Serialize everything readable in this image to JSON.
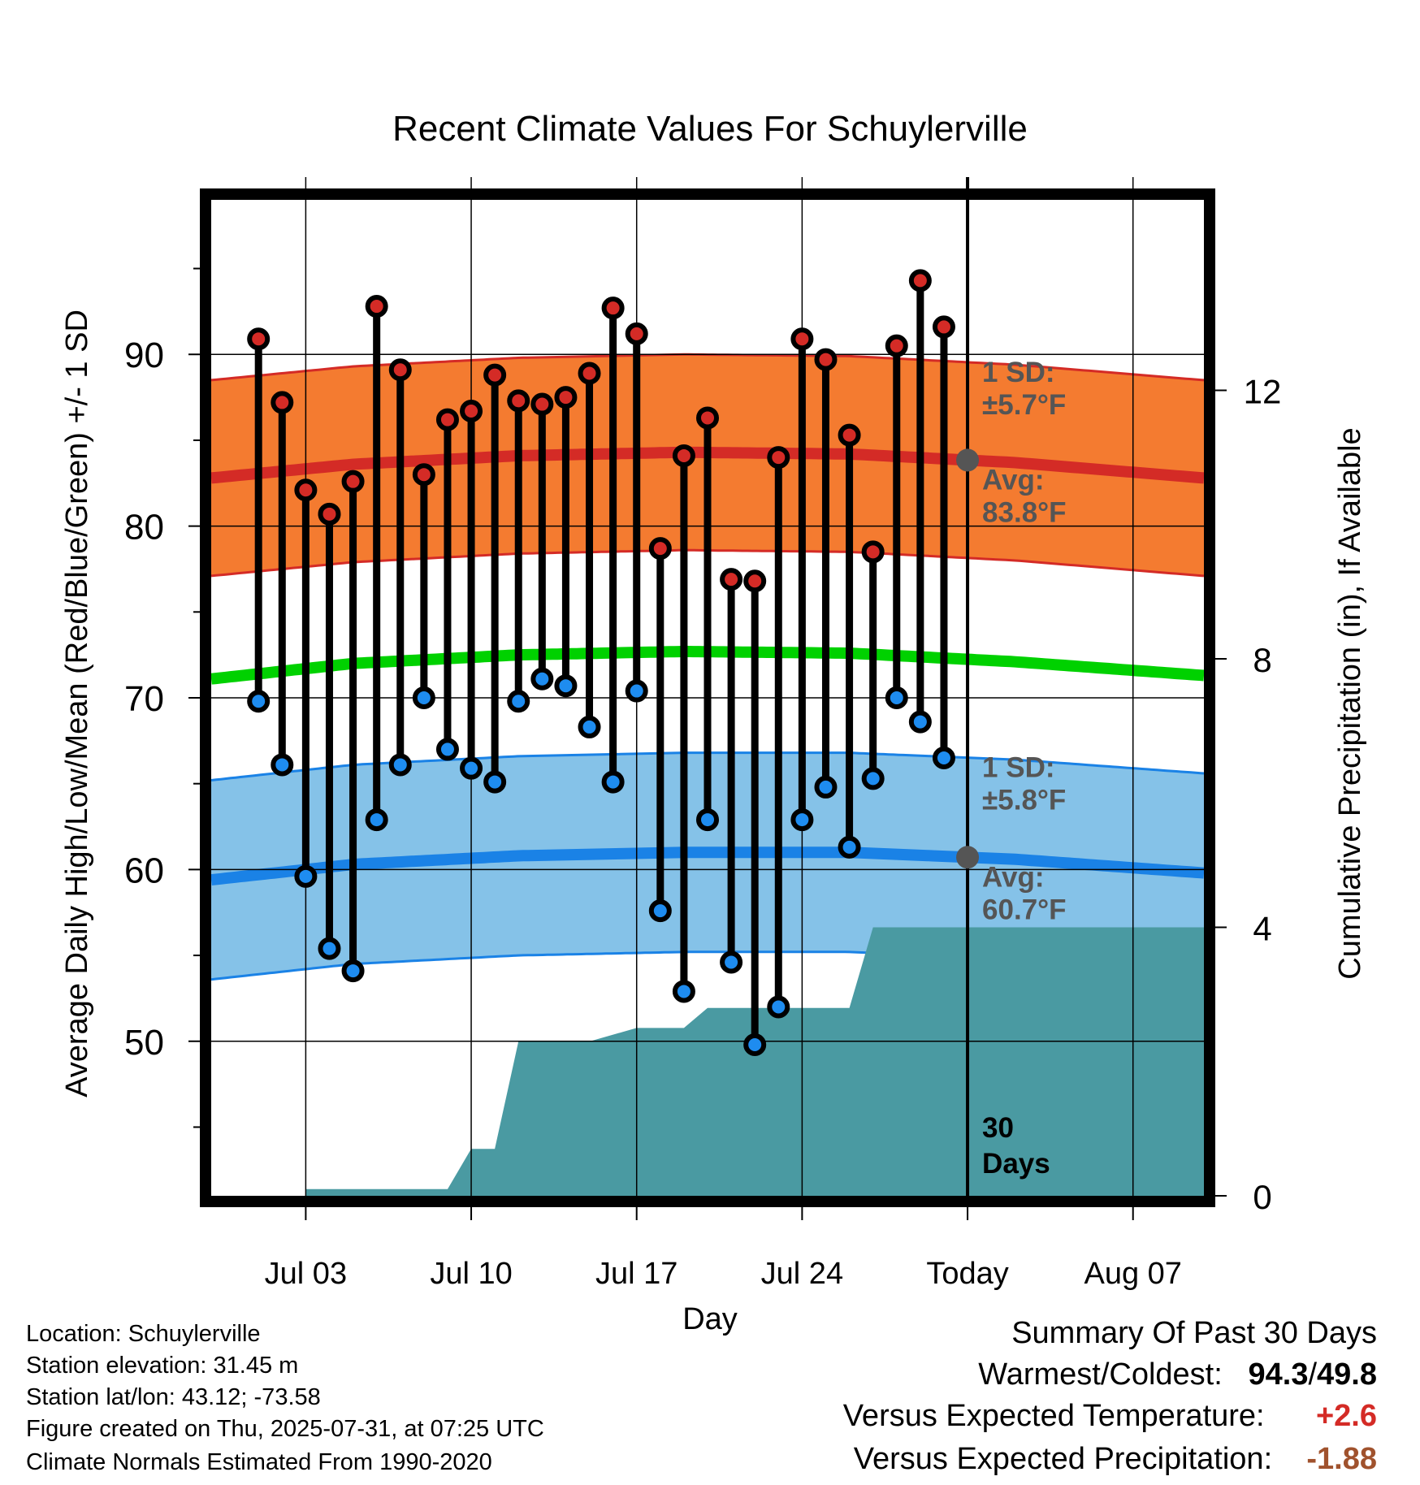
{
  "chart_data": {
    "type": "line",
    "title": "Recent Climate Values For Schuylerville",
    "xlabel": "Day",
    "ylabel": "Average Daily High/Low/Mean (Red/Blue/Green) +/- 1 SD",
    "y2label": "Cumulative Precipitation (in), If Available",
    "ylim": [
      41,
      99
    ],
    "y_ticks": [
      50,
      60,
      70,
      80,
      90
    ],
    "y2lim": [
      0,
      16
    ],
    "y2_ticks": [
      0,
      4,
      8,
      12
    ],
    "x_range": [
      "2025-06-29",
      "2025-08-10"
    ],
    "x_ticks": [
      {
        "date": "2025-07-03",
        "label": "Jul 03"
      },
      {
        "date": "2025-07-10",
        "label": "Jul 10"
      },
      {
        "date": "2025-07-17",
        "label": "Jul 17"
      },
      {
        "date": "2025-07-24",
        "label": "Jul 24"
      },
      {
        "date": "2025-07-31",
        "label": "Today"
      },
      {
        "date": "2025-08-07",
        "label": "Aug 07"
      }
    ],
    "today": "2025-07-31",
    "grid": true,
    "dates": [
      "2025-07-01",
      "2025-07-02",
      "2025-07-03",
      "2025-07-04",
      "2025-07-05",
      "2025-07-06",
      "2025-07-07",
      "2025-07-08",
      "2025-07-09",
      "2025-07-10",
      "2025-07-11",
      "2025-07-12",
      "2025-07-13",
      "2025-07-14",
      "2025-07-15",
      "2025-07-16",
      "2025-07-17",
      "2025-07-18",
      "2025-07-19",
      "2025-07-20",
      "2025-07-21",
      "2025-07-22",
      "2025-07-23",
      "2025-07-24",
      "2025-07-25",
      "2025-07-26",
      "2025-07-27",
      "2025-07-28",
      "2025-07-29",
      "2025-07-30"
    ],
    "daily_high": [
      90.9,
      87.2,
      82.1,
      80.7,
      82.6,
      92.8,
      89.1,
      83.0,
      86.2,
      86.7,
      88.8,
      87.3,
      87.1,
      87.5,
      88.9,
      92.7,
      91.2,
      78.7,
      84.1,
      86.3,
      76.9,
      76.8,
      84.0,
      90.9,
      89.7,
      85.3,
      78.5,
      90.5,
      94.3,
      91.6
    ],
    "daily_low": [
      69.8,
      66.1,
      59.6,
      55.4,
      54.1,
      62.9,
      66.1,
      70.0,
      67.0,
      65.9,
      65.1,
      69.8,
      71.1,
      70.7,
      68.3,
      65.1,
      70.4,
      57.6,
      52.9,
      62.9,
      54.6,
      49.8,
      52.0,
      62.9,
      64.8,
      61.3,
      65.3,
      70.0,
      68.6,
      66.5
    ],
    "normal_dates": [
      "2025-06-29",
      "2025-07-05",
      "2025-07-12",
      "2025-07-19",
      "2025-07-26",
      "2025-08-02",
      "2025-08-10"
    ],
    "normal_high": [
      82.8,
      83.6,
      84.1,
      84.3,
      84.2,
      83.7,
      82.8
    ],
    "normal_high_sd": 5.7,
    "normal_low": [
      59.4,
      60.3,
      60.8,
      61.0,
      61.0,
      60.6,
      59.8
    ],
    "normal_low_sd": 5.8,
    "normal_mean": [
      71.1,
      72.0,
      72.5,
      72.7,
      72.6,
      72.1,
      71.3
    ],
    "precip_dates": [
      "2025-07-03",
      "2025-07-09",
      "2025-07-10",
      "2025-07-11",
      "2025-07-12",
      "2025-07-15",
      "2025-07-17",
      "2025-07-19",
      "2025-07-20",
      "2025-07-26",
      "2025-07-27",
      "2025-08-10"
    ],
    "precip_cum": [
      0.1,
      0.1,
      0.7,
      0.7,
      2.3,
      2.3,
      2.5,
      2.5,
      2.8,
      2.8,
      4.0,
      4.0
    ],
    "annotations": {
      "high_sd_title": "1 SD:",
      "high_sd_value": "±5.7°F",
      "high_avg_title": "Avg:",
      "high_avg_value": "83.8°F",
      "low_sd_title": "1 SD:",
      "low_sd_value": "±5.8°F",
      "low_avg_title": "Avg:",
      "low_avg_value": "60.7°F",
      "precip_label_1": "30",
      "precip_label_2": "Days"
    }
  },
  "colors": {
    "high_band": "#f47b30",
    "high_line": "#d42b26",
    "low_band": "#85c2e8",
    "low_line": "#1a82e6",
    "mean_line": "#00d100",
    "precip_fill": "#4a9aa2",
    "high_dot": "#d42b26",
    "low_dot": "#1e8cf0",
    "annotation": "#555555",
    "warm": "#d42b26",
    "dry": "#a0522d"
  },
  "info": {
    "location": "Location: Schuylerville",
    "elevation": "Station elevation: 31.45 m",
    "latlon": "Station lat/lon: 43.12; -73.58",
    "created": "Figure created on Thu, 2025-07-31, at 07:25 UTC",
    "normals": "Climate Normals Estimated From 1990-2020"
  },
  "summary": {
    "title": "Summary Of Past 30 Days",
    "warm_cold_label": "Warmest/Coldest:",
    "warmest": "94.3",
    "sep": "/",
    "coldest": "49.8",
    "temp_label": "Versus Expected Temperature:",
    "temp_value": "+2.6",
    "precip_label": "Versus Expected Precipitation:",
    "precip_value": "-1.88"
  }
}
